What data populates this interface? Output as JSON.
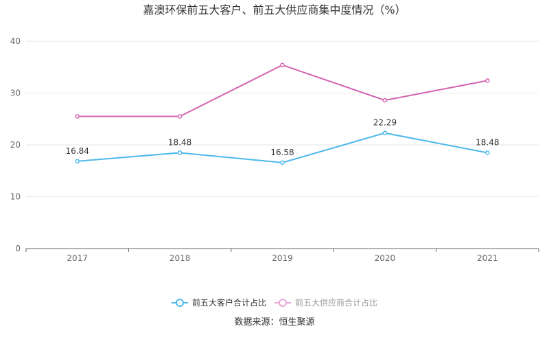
{
  "chart_data": {
    "type": "line",
    "title": "嘉澳环保前五大客户、前五大供应商集中度情况（%）",
    "categories": [
      "2017",
      "2018",
      "2019",
      "2020",
      "2021"
    ],
    "ylim": [
      0,
      40
    ],
    "yticks": [
      "0",
      "10",
      "20",
      "30",
      "40"
    ],
    "grid": true,
    "legend_position": "bottom",
    "series": [
      {
        "name": "前五大客户合计占比",
        "values": [
          16.84,
          18.48,
          16.58,
          22.29,
          18.48
        ],
        "labels": [
          "16.84",
          "18.48",
          "16.58",
          "22.29",
          "18.48"
        ],
        "color": "#4db8ec"
      },
      {
        "name": "前五大供应商合计占比",
        "values": [
          25.5,
          25.5,
          35.4,
          28.6,
          32.4
        ],
        "labels": [],
        "color": "#d462b0"
      }
    ],
    "source": "数据来源：恒生聚源"
  }
}
